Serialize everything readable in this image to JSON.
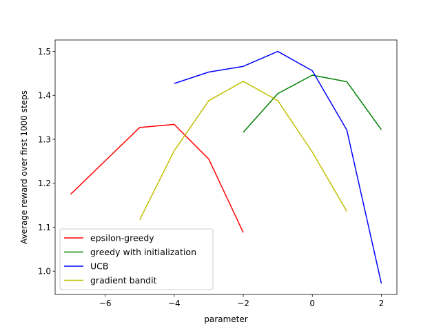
{
  "chart_data": {
    "type": "line",
    "title": "",
    "xlabel": "parameter",
    "ylabel": "Average reward over first 1000 steps",
    "xlim": [
      -7.45,
      2.45
    ],
    "ylim": [
      0.947,
      1.526
    ],
    "xticks": [
      -6,
      -4,
      -2,
      0,
      2
    ],
    "xtick_labels": [
      "−6",
      "−4",
      "−2",
      "0",
      "2"
    ],
    "yticks": [
      1.0,
      1.1,
      1.2,
      1.3,
      1.4,
      1.5
    ],
    "ytick_labels": [
      "1.0",
      "1.1",
      "1.2",
      "1.3",
      "1.4",
      "1.5"
    ],
    "grid": false,
    "legend_position": "lower-left",
    "series": [
      {
        "name": "epsilon-greedy",
        "color": "#ff0000",
        "x": [
          -7,
          -6,
          -5,
          -4,
          -3,
          -2
        ],
        "y": [
          1.175,
          1.251,
          1.327,
          1.334,
          1.255,
          1.088
        ]
      },
      {
        "name": "greedy with initialization",
        "color": "#008000",
        "x": [
          -2,
          -1,
          0,
          1,
          2
        ],
        "y": [
          1.316,
          1.404,
          1.446,
          1.431,
          1.322
        ]
      },
      {
        "name": "UCB",
        "color": "#0000ff",
        "x": [
          -4,
          -3,
          -2,
          -1,
          0,
          1,
          2
        ],
        "y": [
          1.427,
          1.453,
          1.466,
          1.5,
          1.456,
          1.321,
          0.972
        ]
      },
      {
        "name": "gradient bandit",
        "color": "#bfbf00",
        "x": [
          -5,
          -4,
          -3,
          -2,
          -1,
          0,
          1
        ],
        "y": [
          1.117,
          1.274,
          1.388,
          1.432,
          1.388,
          1.271,
          1.136
        ]
      }
    ]
  }
}
